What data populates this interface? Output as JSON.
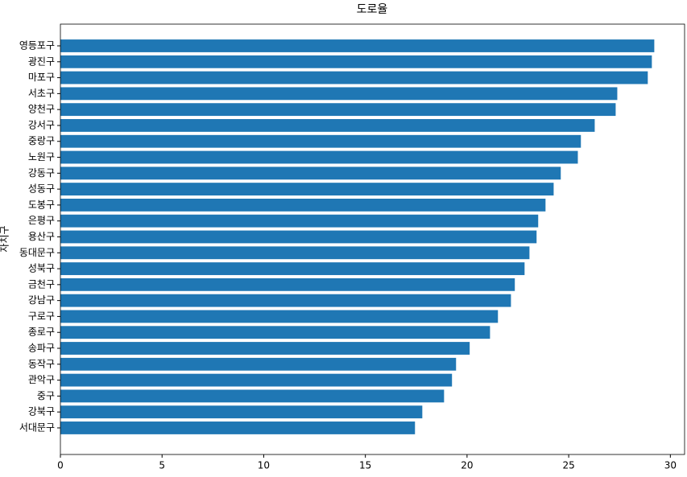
{
  "chart_data": {
    "type": "barh",
    "title": "도로율",
    "y_label": "자치구",
    "categories": [
      "영등포구",
      "광진구",
      "마포구",
      "서초구",
      "양천구",
      "강서구",
      "중랑구",
      "노원구",
      "강동구",
      "성동구",
      "도봉구",
      "은평구",
      "용산구",
      "동대문구",
      "성북구",
      "금천구",
      "강남구",
      "구로구",
      "종로구",
      "송파구",
      "동작구",
      "관악구",
      "중구",
      "강북구",
      "서대문구"
    ],
    "values": [
      29.21,
      29.09,
      28.89,
      27.39,
      27.31,
      26.28,
      25.6,
      25.45,
      24.61,
      24.26,
      23.86,
      23.5,
      23.42,
      23.07,
      22.83,
      22.35,
      22.16,
      21.52,
      21.13,
      20.13,
      19.46,
      19.26,
      18.87,
      17.8,
      17.44
    ],
    "color": "#1f77b4",
    "xlim": [
      0,
      30.7
    ],
    "xticks": [
      0,
      5,
      10,
      15,
      20,
      25,
      30
    ]
  }
}
